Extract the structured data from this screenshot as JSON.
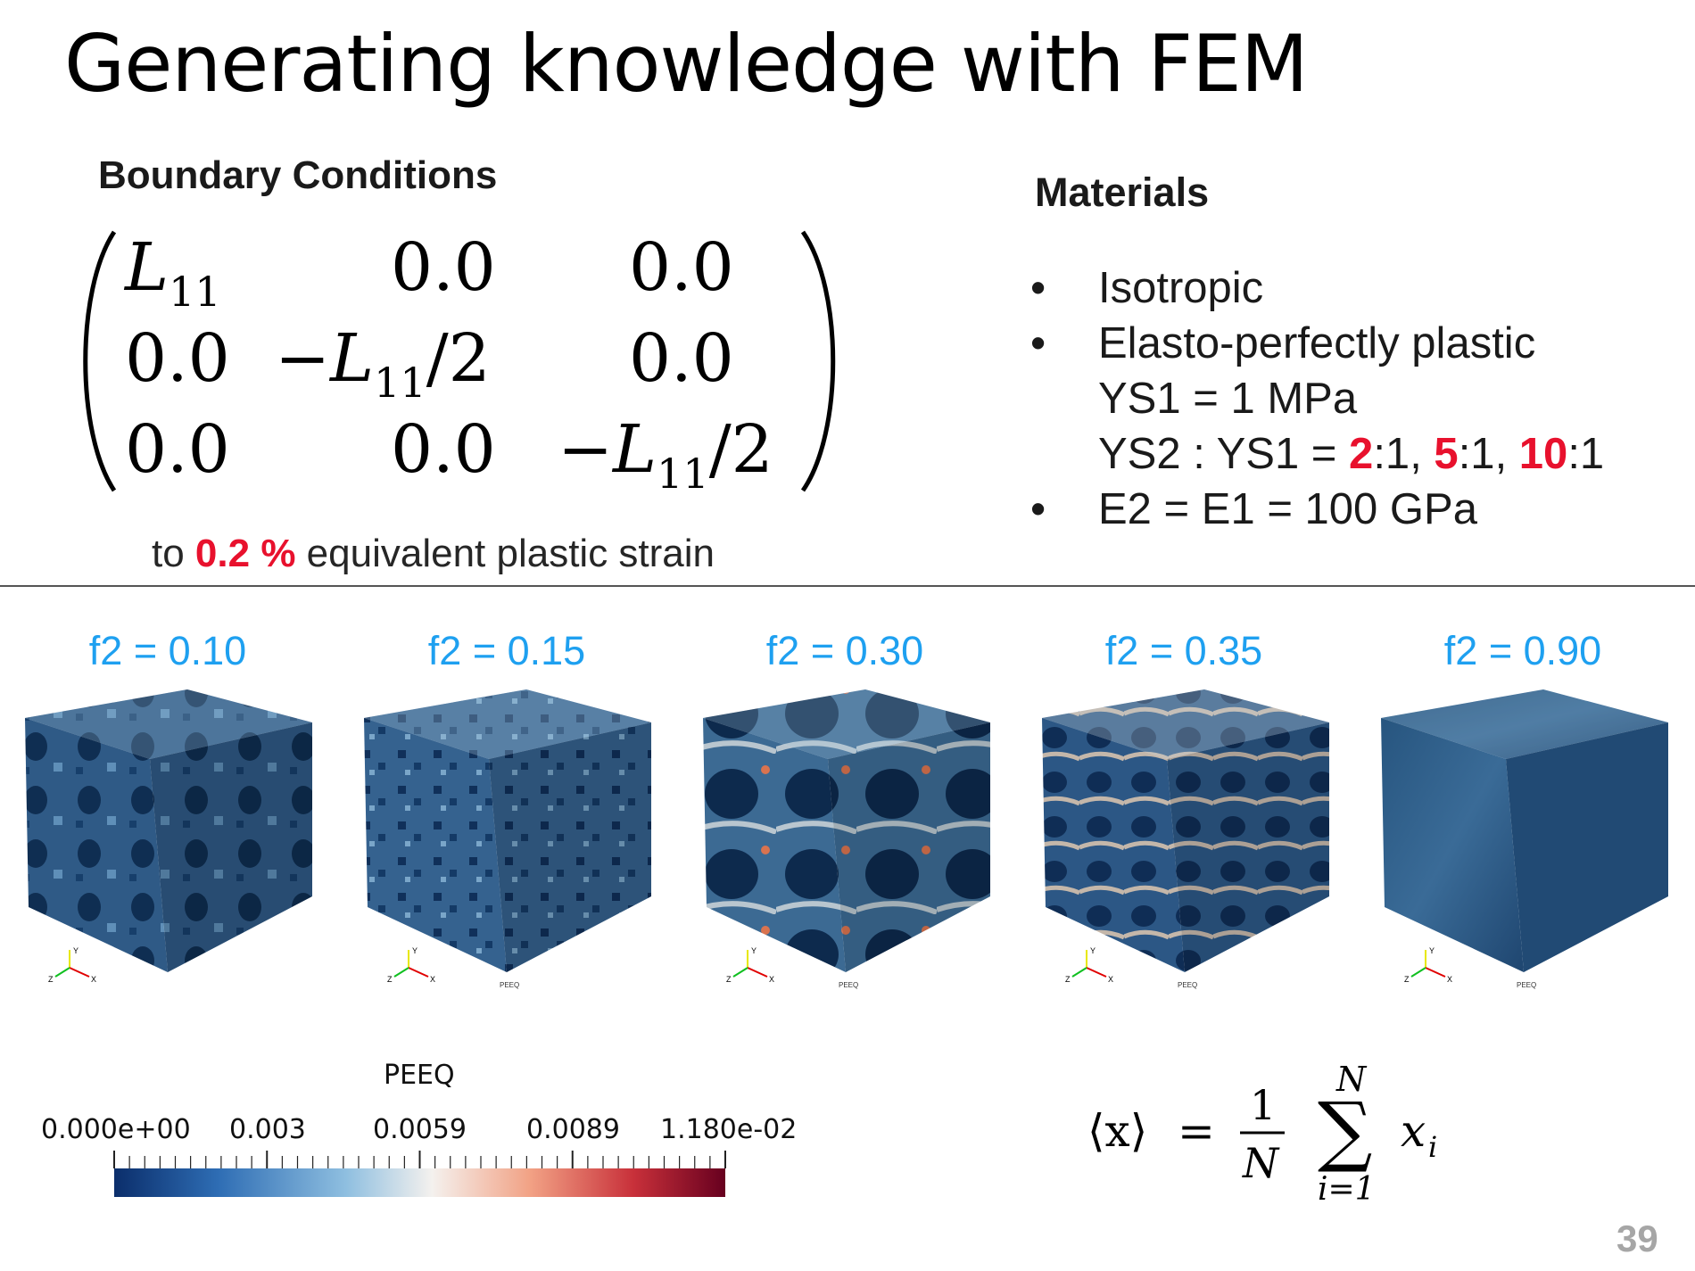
{
  "slide": {
    "title": "Generating knowledge with FEM",
    "page_number": "39"
  },
  "boundary_conditions": {
    "heading": "Boundary Conditions",
    "matrix": [
      [
        "L11",
        "0.0",
        "0.0"
      ],
      [
        "0.0",
        "−L11/2",
        "0.0"
      ],
      [
        "0.0",
        "0.0",
        "−L11/2"
      ]
    ],
    "note_prefix": "to ",
    "note_value": "0.2 %",
    "note_suffix": " equivalent plastic strain"
  },
  "materials": {
    "heading": "Materials",
    "bullet_glyph": "•",
    "items": [
      "Isotropic",
      "Elasto-perfectly plastic",
      "E2 = E1 = 100 GPa"
    ],
    "ys1_line": "YS1 = 1 MPa",
    "ys2_prefix": "YS2 : YS1 = ",
    "ratio_values": [
      "2",
      "5",
      "10"
    ],
    "ratio_suffix": ":1",
    "ratio_separator": ", ",
    "highlight_color": "#e8112d"
  },
  "cubes": [
    {
      "label": "f2 = 0.10",
      "legend_text": ""
    },
    {
      "label": "f2 = 0.15",
      "legend_text": "PEEQ"
    },
    {
      "label": "f2 = 0.30",
      "legend_text": "PEEQ"
    },
    {
      "label": "f2 = 0.35",
      "legend_text": "PEEQ"
    },
    {
      "label": "f2 = 0.90",
      "legend_text": "PEEQ"
    }
  ],
  "axis_triad": {
    "x": "X",
    "y": "Y",
    "z": "Z"
  },
  "colorbar": {
    "title": "PEEQ",
    "tick_labels": [
      "0.000e+00",
      "0.003",
      "0.0059",
      "0.0089",
      "1.180e-02"
    ],
    "colors": [
      "#0b2e6b",
      "#2e6db4",
      "#8fbfe0",
      "#f4f1ee",
      "#f2a285",
      "#c8303a",
      "#67001f"
    ]
  },
  "formula": {
    "lhs": "⟨x⟩",
    "equals": "=",
    "numerator": "1",
    "denominator": "N",
    "sum_top": "N",
    "sum_bottom": "i=1",
    "sum_symbol": "∑",
    "term": "x",
    "term_sub": "i"
  },
  "colors": {
    "label_blue": "#1ea0f0",
    "highlight_red": "#e8112d",
    "page_num_gray": "#a6a6a6"
  }
}
